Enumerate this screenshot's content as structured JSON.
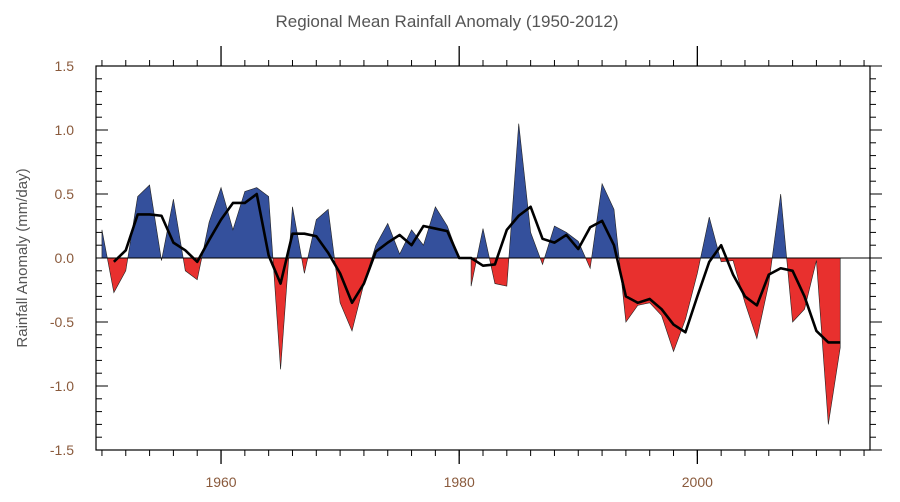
{
  "chart_data": {
    "type": "area",
    "title": "Regional Mean Rainfall Anomaly (1950-2012)",
    "xlabel": "",
    "ylabel": "Rainfall Anomaly (mm/day)",
    "xlim": [
      1949.5,
      2014.5
    ],
    "ylim": [
      -1.5,
      1.5
    ],
    "x_ticks": [
      1960,
      1980,
      2000
    ],
    "x_tick_labels": [
      "1960",
      "1980",
      "2000"
    ],
    "y_ticks": [
      -1.5,
      -1.0,
      -0.5,
      0.0,
      0.5,
      1.0,
      1.5
    ],
    "y_tick_labels": [
      "-1.5",
      "-1.0",
      "-0.5",
      "0.0",
      "0.5",
      "1.0",
      "1.5"
    ],
    "grid": false,
    "colors": {
      "positive": "#34509c",
      "negative": "#e8302e",
      "smooth": "#000000",
      "axis": "#000000",
      "tick_label": "#8a5a3c",
      "text": "#555555"
    },
    "series": [
      {
        "kind": "annual_anomaly_fill",
        "x": [
          1950,
          1951,
          1952,
          1953,
          1954,
          1955,
          1956,
          1957,
          1958,
          1959,
          1960,
          1961,
          1962,
          1963,
          1964,
          1965,
          1966,
          1967,
          1968,
          1969,
          1970,
          1971,
          1972,
          1973,
          1974,
          1975,
          1976,
          1977,
          1978,
          1979,
          1980,
          1981,
          1982,
          1983,
          1984,
          1985,
          1986,
          1987,
          1988,
          1989,
          1990,
          1991,
          1992,
          1993,
          1994,
          1995,
          1996,
          1997,
          1998,
          1999,
          2000,
          2001,
          2002,
          2003,
          2004,
          2005,
          2006,
          2007,
          2008,
          2009,
          2010,
          2011,
          2012
        ],
        "values": [
          0.22,
          -0.27,
          -0.1,
          0.48,
          0.57,
          -0.02,
          0.46,
          -0.1,
          -0.17,
          0.28,
          0.55,
          0.22,
          0.52,
          0.55,
          0.48,
          -0.87,
          0.4,
          -0.12,
          0.3,
          0.38,
          -0.35,
          -0.57,
          -0.2,
          0.1,
          0.27,
          0.03,
          0.22,
          0.1,
          0.4,
          0.25,
          0.0,
          -0.22,
          0.23,
          -0.2,
          -0.22,
          1.05,
          0.2,
          -0.05,
          0.25,
          0.2,
          0.13,
          -0.08,
          0.58,
          0.38,
          -0.5,
          -0.37,
          -0.35,
          -0.45,
          -0.73,
          -0.48,
          -0.12,
          0.32,
          -0.03,
          -0.02,
          -0.35,
          -0.63,
          -0.2,
          0.5,
          -0.5,
          -0.4,
          -0.02,
          -1.3,
          -0.7
        ]
      },
      {
        "kind": "smoothed_line",
        "x": [
          1951,
          1952,
          1953,
          1954,
          1955,
          1956,
          1957,
          1958,
          1959,
          1960,
          1961,
          1962,
          1963,
          1964,
          1965,
          1966,
          1967,
          1968,
          1969,
          1970,
          1971,
          1972,
          1973,
          1974,
          1975,
          1976,
          1977,
          1978,
          1979,
          1980,
          1981,
          1982,
          1983,
          1984,
          1985,
          1986,
          1987,
          1988,
          1989,
          1990,
          1991,
          1992,
          1993,
          1994,
          1995,
          1996,
          1997,
          1998,
          1999,
          2000,
          2001,
          2002,
          2003,
          2004,
          2005,
          2006,
          2007,
          2008,
          2009,
          2010,
          2011,
          2012
        ],
        "values": [
          -0.03,
          0.06,
          0.34,
          0.34,
          0.33,
          0.12,
          0.06,
          -0.03,
          0.14,
          0.3,
          0.43,
          0.43,
          0.5,
          0.02,
          -0.2,
          0.19,
          0.19,
          0.17,
          0.04,
          -0.12,
          -0.35,
          -0.2,
          0.05,
          0.12,
          0.18,
          0.1,
          0.25,
          0.23,
          0.21,
          0.0,
          0.0,
          -0.06,
          -0.05,
          0.22,
          0.33,
          0.4,
          0.15,
          0.12,
          0.18,
          0.07,
          0.24,
          0.29,
          0.1,
          -0.3,
          -0.35,
          -0.32,
          -0.4,
          -0.52,
          -0.58,
          -0.3,
          -0.03,
          0.1,
          -0.13,
          -0.3,
          -0.37,
          -0.13,
          -0.08,
          -0.1,
          -0.3,
          -0.57,
          -0.66,
          -0.66
        ]
      }
    ]
  }
}
